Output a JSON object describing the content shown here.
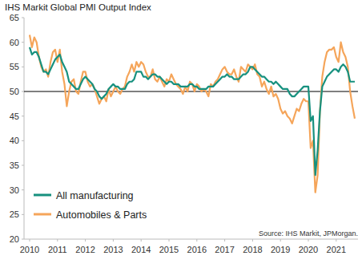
{
  "chart_data": {
    "type": "line",
    "title": "IHS Markit  Global PMI Output Index",
    "source": "Source: IHS Markit, JPMorgan.",
    "categories": [
      "2010",
      null,
      null,
      null,
      null,
      null,
      null,
      null,
      null,
      null,
      null,
      null,
      "2011",
      null,
      null,
      null,
      null,
      null,
      null,
      null,
      null,
      null,
      null,
      null,
      "2012",
      null,
      null,
      null,
      null,
      null,
      null,
      null,
      null,
      null,
      null,
      null,
      "2013",
      null,
      null,
      null,
      null,
      null,
      null,
      null,
      null,
      null,
      null,
      null,
      "2014",
      null,
      null,
      null,
      null,
      null,
      null,
      null,
      null,
      null,
      null,
      null,
      "2015",
      null,
      null,
      null,
      null,
      null,
      null,
      null,
      null,
      null,
      null,
      null,
      "2016",
      null,
      null,
      null,
      null,
      null,
      null,
      null,
      null,
      null,
      null,
      null,
      "2017",
      null,
      null,
      null,
      null,
      null,
      null,
      null,
      null,
      null,
      null,
      null,
      "2018",
      null,
      null,
      null,
      null,
      null,
      null,
      null,
      null,
      null,
      null,
      null,
      "2019",
      null,
      null,
      null,
      null,
      null,
      null,
      null,
      null,
      null,
      null,
      null,
      "2020",
      null,
      null,
      null,
      null,
      null,
      null,
      null,
      null,
      null,
      null,
      null,
      "2021",
      null,
      null,
      null,
      null,
      null,
      null,
      null,
      null
    ],
    "series": [
      {
        "name": "All manufacturing",
        "color": "#17917f",
        "values": [
          59,
          57.5,
          58,
          58,
          57,
          55.5,
          54,
          54,
          53.5,
          54.5,
          55.5,
          56.5,
          57,
          57.5,
          56,
          55,
          54,
          52,
          51.5,
          51,
          50.5,
          50.5,
          51.5,
          52.5,
          53,
          52.5,
          52,
          51.5,
          50.5,
          50,
          49,
          48.5,
          49,
          49.5,
          50.5,
          51,
          51.5,
          51,
          51,
          50.5,
          50.5,
          50.5,
          51.5,
          52,
          52,
          52.5,
          54,
          54,
          54,
          53,
          53,
          52.5,
          53,
          53.5,
          53.5,
          53,
          53,
          52.5,
          52,
          51.5,
          52,
          52,
          51.5,
          51.5,
          51.5,
          51,
          51,
          51,
          51,
          51.5,
          51.5,
          51,
          51,
          50.5,
          50.5,
          50.5,
          50.5,
          51,
          51,
          51,
          51.5,
          52,
          52.5,
          53,
          53,
          53.5,
          53,
          53,
          52.5,
          52.5,
          52.5,
          53,
          53.5,
          53.5,
          54,
          55,
          55,
          54.5,
          54,
          53.5,
          53,
          53,
          52.5,
          52,
          52,
          51.5,
          52,
          51.5,
          51,
          50.5,
          50.5,
          50.5,
          49.5,
          49,
          49,
          49.5,
          50,
          50.5,
          51,
          51,
          51,
          44,
          45,
          33,
          38,
          46,
          51,
          52,
          53,
          53.5,
          54,
          54.5,
          54.5,
          54,
          55,
          55.5,
          55,
          54,
          52,
          52,
          52
        ]
      },
      {
        "name": "Automobiles & Parts",
        "color": "#f5a55a",
        "values": [
          61.5,
          59,
          61,
          60,
          57,
          55,
          54,
          54.5,
          53,
          56,
          58,
          58.5,
          56,
          58.5,
          54,
          51.5,
          47,
          50,
          52,
          52.5,
          50,
          49.5,
          52,
          54,
          54,
          52,
          51,
          51.5,
          50.5,
          49,
          47.5,
          48.5,
          49,
          48,
          50.5,
          49,
          50,
          51,
          50,
          49.5,
          50.5,
          51,
          53,
          54,
          55.5,
          54,
          56,
          55,
          56,
          55.5,
          54,
          53,
          53,
          54.5,
          52.5,
          52,
          53,
          52,
          51,
          52.5,
          52,
          53.5,
          52.5,
          51.5,
          51,
          50.5,
          49.5,
          51,
          50,
          52,
          51.5,
          50,
          51.5,
          51,
          50,
          50.5,
          50,
          49,
          51.5,
          51,
          52,
          52.5,
          53.5,
          54.5,
          55,
          54,
          53.5,
          53.5,
          54.5,
          53,
          52,
          55,
          54.5,
          54,
          55.5,
          55,
          54.5,
          55.5,
          53.5,
          53,
          51,
          52,
          50.5,
          49.5,
          51,
          49,
          49.5,
          48.5,
          46.5,
          45.5,
          46,
          45,
          44.5,
          43.5,
          45,
          46.5,
          46,
          47.5,
          48.5,
          48,
          48,
          38.5,
          40,
          29.5,
          33,
          46,
          53,
          56,
          58,
          58.5,
          58.5,
          59,
          57,
          56,
          60,
          58,
          57,
          55,
          50,
          47,
          44.5
        ]
      }
    ],
    "ylim": [
      20,
      65
    ],
    "yticks": [
      20,
      25,
      30,
      35,
      40,
      45,
      50,
      55,
      60,
      65
    ],
    "reference_line": 50,
    "grid": false,
    "legend": "lower left"
  }
}
